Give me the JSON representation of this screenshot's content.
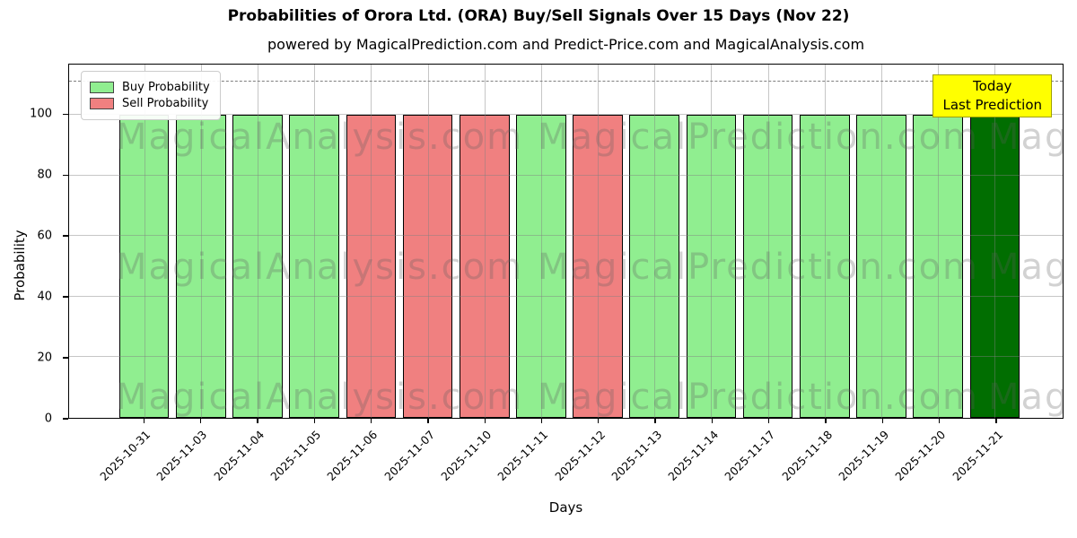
{
  "title": "Probabilities of Orora Ltd. (ORA) Buy/Sell Signals Over 15 Days (Nov 22)",
  "subtitle": "powered by MagicalPrediction.com and Predict-Price.com and MagicalAnalysis.com",
  "axes": {
    "x_label": "Days",
    "y_label": "Probability",
    "y_ticks": [
      0,
      20,
      40,
      60,
      80,
      100
    ],
    "y_max": 116.6,
    "threshold_line_y": 111
  },
  "legend": [
    {
      "label": "Buy Probability",
      "color": "#90ee90"
    },
    {
      "label": "Sell Probability",
      "color": "#f08080"
    }
  ],
  "annotation": {
    "lines": [
      "Today",
      "Last Prediction"
    ],
    "bg": "#ffff00",
    "border": "#a0a000"
  },
  "watermarks": [
    "MagicalAnalysis.com",
    "MagicalPrediction.com"
  ],
  "colors": {
    "buy": "#90ee90",
    "sell": "#f08080",
    "today": "#016e01",
    "bar_edge": "#000000",
    "grid": "#808080",
    "dashed_line": "#7f7f7f"
  },
  "chart_data": {
    "type": "bar",
    "title": "Probabilities of Orora Ltd. (ORA) Buy/Sell Signals Over 15 Days (Nov 22)",
    "xlabel": "Days",
    "ylabel": "Probability",
    "ylim": [
      0,
      116.6
    ],
    "grid": true,
    "legend_position": "upper left",
    "categories": [
      "2025-10-31",
      "2025-11-03",
      "2025-11-04",
      "2025-11-05",
      "2025-11-06",
      "2025-11-07",
      "2025-11-10",
      "2025-11-11",
      "2025-11-12",
      "2025-11-13",
      "2025-11-14",
      "2025-11-17",
      "2025-11-18",
      "2025-11-19",
      "2025-11-20",
      "2025-11-21"
    ],
    "values": [
      100,
      100,
      100,
      100,
      100,
      100,
      100,
      100,
      100,
      100,
      100,
      100,
      100,
      100,
      100,
      100
    ],
    "signals": [
      "buy",
      "buy",
      "buy",
      "buy",
      "sell",
      "sell",
      "sell",
      "buy",
      "sell",
      "buy",
      "buy",
      "buy",
      "buy",
      "buy",
      "buy",
      "today"
    ],
    "threshold_dashed_line": 111
  }
}
